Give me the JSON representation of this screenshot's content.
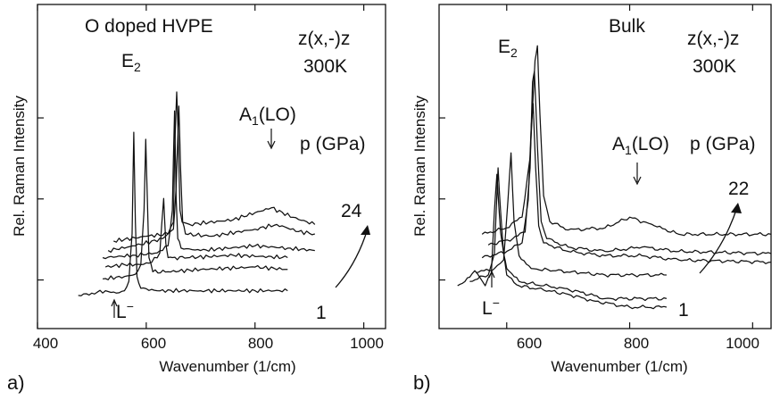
{
  "chart_data": [
    {
      "type": "line",
      "panel_label": "a)",
      "title": "O doped HVPE",
      "geometry": "z(x,-)z",
      "temperature": "300K",
      "xlabel": "Wavenumber (1/cm)",
      "ylabel": "Rel. Raman Intensity",
      "xlim": [
        400,
        1040
      ],
      "xticks": [
        "400",
        "600",
        "800",
        "1000"
      ],
      "peak_labels": {
        "e2": "E",
        "e2_sub": "2",
        "a1": "A",
        "a1_sub": "1",
        "a1_suffix": "(LO)",
        "lminus": "L",
        "lminus_sup": "−"
      },
      "pressure_label": "p (GPa)",
      "pressure_high": "24",
      "pressure_low": "1",
      "series": [
        {
          "x": [
            475,
            500,
            525,
            545,
            560,
            568,
            574,
            577,
            580,
            583,
            590,
            620,
            700,
            800,
            860
          ],
          "y": [
            0.14,
            0.15,
            0.16,
            0.15,
            0.16,
            0.2,
            0.4,
            0.83,
            0.45,
            0.22,
            0.17,
            0.16,
            0.16,
            0.16,
            0.16
          ]
        },
        {
          "x": [
            520,
            560,
            580,
            590,
            596,
            599,
            602,
            605,
            612,
            640,
            700,
            800,
            860
          ],
          "y": [
            0.21,
            0.22,
            0.23,
            0.27,
            0.5,
            0.8,
            0.55,
            0.3,
            0.24,
            0.24,
            0.25,
            0.26,
            0.25
          ]
        },
        {
          "x": [
            525,
            560,
            590,
            610,
            625,
            632,
            636,
            640,
            648,
            680,
            760,
            860
          ],
          "y": [
            0.26,
            0.27,
            0.27,
            0.28,
            0.32,
            0.55,
            0.36,
            0.3,
            0.3,
            0.3,
            0.31,
            0.3
          ]
        },
        {
          "x": [
            520,
            580,
            620,
            640,
            648,
            652,
            655,
            658,
            664,
            700,
            800,
            860,
            910
          ],
          "y": [
            0.3,
            0.31,
            0.32,
            0.35,
            0.5,
            0.92,
            0.55,
            0.38,
            0.34,
            0.33,
            0.35,
            0.34,
            0.33
          ]
        },
        {
          "x": [
            530,
            580,
            630,
            650,
            655,
            660,
            663,
            667,
            672,
            720,
            800,
            840,
            880,
            910
          ],
          "y": [
            0.33,
            0.35,
            0.38,
            0.42,
            0.6,
            0.94,
            0.68,
            0.45,
            0.4,
            0.39,
            0.42,
            0.44,
            0.41,
            0.4
          ]
        },
        {
          "x": [
            540,
            600,
            640,
            650,
            652,
            656,
            659,
            662,
            666,
            680,
            760,
            800,
            830,
            870,
            910
          ],
          "y": [
            0.37,
            0.39,
            0.4,
            0.45,
            0.75,
            1.0,
            0.8,
            0.5,
            0.45,
            0.44,
            0.46,
            0.49,
            0.51,
            0.47,
            0.44
          ]
        }
      ]
    },
    {
      "type": "line",
      "panel_label": "b)",
      "title": "Bulk",
      "geometry": "z(x,-)z",
      "temperature": "300K",
      "xlabel": "Wavenumber (1/cm)",
      "xlim": [
        490,
        1030
      ],
      "xticks": [
        "600",
        "800",
        "1000"
      ],
      "ylabel": "Rel. Raman Intensity",
      "peak_labels": {
        "e2": "E",
        "e2_sub": "2",
        "a1": "A",
        "a1_sub": "1",
        "a1_suffix": "(LO)",
        "lminus": "L",
        "lminus_sup": "−"
      },
      "pressure_label": "p (GPa)",
      "pressure_high": "22",
      "pressure_low": "1",
      "series": [
        {
          "x": [
            520,
            540,
            548,
            556,
            565,
            575,
            580,
            584,
            590,
            600,
            620,
            660,
            700,
            740,
            800,
            860
          ],
          "y": [
            0.2,
            0.24,
            0.27,
            0.24,
            0.2,
            0.26,
            0.55,
            0.72,
            0.45,
            0.25,
            0.2,
            0.18,
            0.16,
            0.13,
            0.1,
            0.1
          ]
        },
        {
          "x": [
            540,
            570,
            580,
            586,
            590,
            595,
            600,
            620,
            660,
            690,
            720,
            760,
            860
          ],
          "y": [
            0.22,
            0.25,
            0.35,
            0.75,
            0.55,
            0.35,
            0.28,
            0.22,
            0.2,
            0.19,
            0.17,
            0.14,
            0.14
          ]
        },
        {
          "x": [
            550,
            580,
            595,
            602,
            607,
            612,
            620,
            640,
            680,
            720,
            760,
            860
          ],
          "y": [
            0.26,
            0.28,
            0.32,
            0.6,
            0.82,
            0.5,
            0.34,
            0.28,
            0.27,
            0.26,
            0.25,
            0.25
          ]
        },
        {
          "x": [
            560,
            600,
            625,
            635,
            640,
            643,
            647,
            652,
            660,
            700,
            760,
            820,
            880,
            1030
          ],
          "y": [
            0.33,
            0.36,
            0.4,
            0.6,
            0.95,
            1.05,
            0.75,
            0.48,
            0.4,
            0.36,
            0.34,
            0.34,
            0.32,
            0.31
          ]
        },
        {
          "x": [
            570,
            610,
            630,
            638,
            642,
            645,
            650,
            656,
            665,
            700,
            760,
            820,
            880,
            1030
          ],
          "y": [
            0.39,
            0.42,
            0.45,
            0.75,
            1.15,
            1.2,
            0.85,
            0.5,
            0.42,
            0.38,
            0.36,
            0.38,
            0.36,
            0.35
          ]
        },
        {
          "x": [
            560,
            600,
            625,
            638,
            646,
            650,
            654,
            660,
            670,
            700,
            760,
            800,
            840,
            880,
            1030
          ],
          "y": [
            0.44,
            0.47,
            0.52,
            0.8,
            1.25,
            1.32,
            1.0,
            0.62,
            0.5,
            0.46,
            0.47,
            0.52,
            0.48,
            0.44,
            0.44
          ]
        }
      ]
    }
  ]
}
